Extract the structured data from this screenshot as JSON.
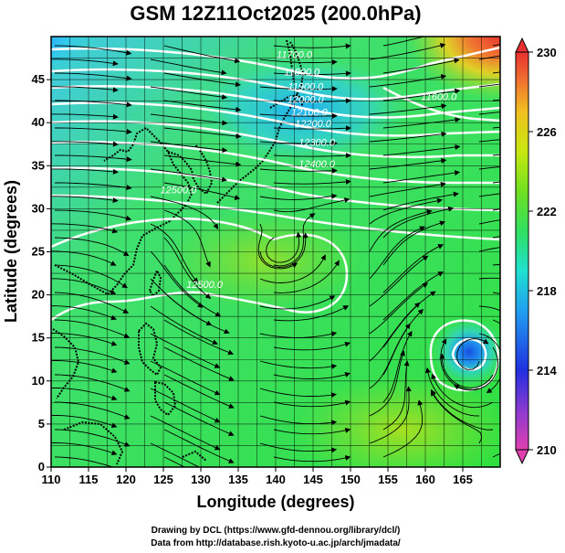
{
  "chart_data": {
    "type": "heatmap",
    "title": "GSM 12Z11Oct2025 (200.0hPa)",
    "xlabel": "Longitude (degrees)",
    "ylabel": "Latitude  (degrees)",
    "xlim": [
      110,
      170
    ],
    "ylim": [
      0,
      50
    ],
    "x_ticks": [
      110,
      115,
      120,
      125,
      130,
      135,
      140,
      145,
      150,
      155,
      160,
      165
    ],
    "y_ticks": [
      0,
      5,
      10,
      15,
      20,
      25,
      30,
      35,
      40,
      45
    ],
    "colorbar": {
      "range": [
        210,
        230
      ],
      "ticks": [
        210,
        214,
        218,
        222,
        226,
        230
      ],
      "colors": [
        "#e040b0",
        "#8a3ad0",
        "#2030e0",
        "#20a0f0",
        "#20e0d0",
        "#30e060",
        "#70e020",
        "#c8e810",
        "#f0c020",
        "#f07030",
        "#e83030"
      ]
    },
    "contour_labels": [
      {
        "text": "11700.0",
        "lon": 142.5,
        "lat": 47.5
      },
      {
        "text": "11800.0",
        "lon": 143.5,
        "lat": 45.5
      },
      {
        "text": "11900.0",
        "lon": 144,
        "lat": 43.8
      },
      {
        "text": "12000.0",
        "lon": 144,
        "lat": 42.3
      },
      {
        "text": "12100.0",
        "lon": 144.5,
        "lat": 40.8
      },
      {
        "text": "12200.0",
        "lon": 145,
        "lat": 39.5
      },
      {
        "text": "12300.0",
        "lon": 145.5,
        "lat": 37.3
      },
      {
        "text": "12400.0",
        "lon": 145.5,
        "lat": 34.8
      },
      {
        "text": "11600.0",
        "lon": 161.8,
        "lat": 42.6
      },
      {
        "text": "12500.0",
        "lon": 127,
        "lat": 31.8
      },
      {
        "text": "12500.0",
        "lon": 130.5,
        "lat": 20.8
      }
    ],
    "credits": [
      "Drawing by DCL (https://www.gfd-dennou.org/library/dcl/)",
      "Data from http://database.rish.kyoto-u.ac.jp/arch/jmadata/"
    ]
  }
}
